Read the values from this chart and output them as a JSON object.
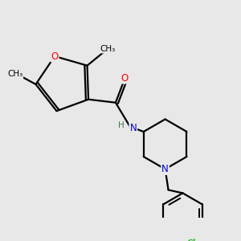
{
  "bg_color": "#e8e8e8",
  "atom_colors": {
    "O": "#ff0000",
    "N": "#0000cc",
    "Cl": "#00aa00",
    "C": "#000000",
    "H": "#447744"
  }
}
